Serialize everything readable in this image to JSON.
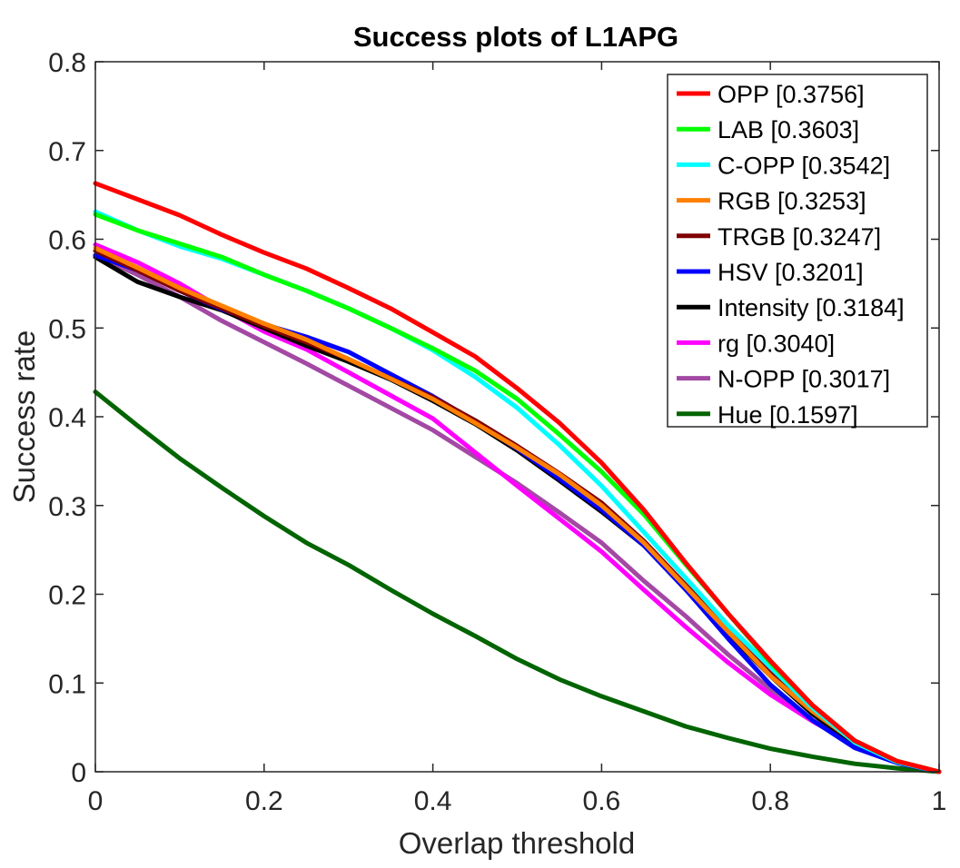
{
  "chart_data": {
    "type": "line",
    "title": "Success plots of L1APG",
    "xlabel": "Overlap threshold",
    "ylabel": "Success rate",
    "xlim": [
      0,
      1
    ],
    "ylim": [
      0,
      0.8
    ],
    "xticks": [
      "0",
      "0.2",
      "0.4",
      "0.6",
      "0.8",
      "1"
    ],
    "yticks": [
      "0",
      "0.1",
      "0.2",
      "0.3",
      "0.4",
      "0.5",
      "0.6",
      "0.7",
      "0.8"
    ],
    "legend_position": "top-right",
    "grid": false,
    "x": [
      0,
      0.05,
      0.1,
      0.15,
      0.2,
      0.25,
      0.3,
      0.35,
      0.4,
      0.45,
      0.5,
      0.55,
      0.6,
      0.65,
      0.7,
      0.75,
      0.8,
      0.85,
      0.9,
      0.95,
      1.0
    ],
    "series": [
      {
        "name": "OPP [0.3756]",
        "color": "#ff0000",
        "values": [
          0.663,
          0.645,
          0.627,
          0.605,
          0.585,
          0.567,
          0.545,
          0.522,
          0.495,
          0.468,
          0.432,
          0.393,
          0.348,
          0.295,
          0.235,
          0.178,
          0.125,
          0.075,
          0.035,
          0.012,
          0.0
        ]
      },
      {
        "name": "LAB [0.3603]",
        "color": "#00ff00",
        "values": [
          0.628,
          0.61,
          0.595,
          0.58,
          0.56,
          0.542,
          0.522,
          0.5,
          0.477,
          0.452,
          0.42,
          0.38,
          0.338,
          0.29,
          0.233,
          0.178,
          0.123,
          0.075,
          0.035,
          0.012,
          0.0
        ]
      },
      {
        "name": "C-OPP [0.3542]",
        "color": "#00ffff",
        "values": [
          0.631,
          0.61,
          0.592,
          0.578,
          0.56,
          0.542,
          0.522,
          0.5,
          0.475,
          0.445,
          0.41,
          0.368,
          0.322,
          0.27,
          0.218,
          0.165,
          0.118,
          0.072,
          0.033,
          0.011,
          0.0
        ]
      },
      {
        "name": "RGB [0.3253]",
        "color": "#ff7f00",
        "values": [
          0.59,
          0.568,
          0.545,
          0.525,
          0.505,
          0.487,
          0.465,
          0.443,
          0.42,
          0.393,
          0.365,
          0.335,
          0.3,
          0.258,
          0.208,
          0.158,
          0.108,
          0.068,
          0.034,
          0.012,
          0.0
        ]
      },
      {
        "name": "TRGB [0.3247]",
        "color": "#800000",
        "values": [
          0.587,
          0.565,
          0.542,
          0.522,
          0.502,
          0.484,
          0.465,
          0.443,
          0.422,
          0.396,
          0.367,
          0.336,
          0.303,
          0.26,
          0.21,
          0.16,
          0.111,
          0.07,
          0.034,
          0.012,
          0.0
        ]
      },
      {
        "name": "HSV [0.3201]",
        "color": "#0000ff",
        "values": [
          0.582,
          0.565,
          0.542,
          0.521,
          0.504,
          0.49,
          0.473,
          0.448,
          0.423,
          0.395,
          0.364,
          0.33,
          0.295,
          0.255,
          0.205,
          0.15,
          0.098,
          0.058,
          0.027,
          0.01,
          0.0
        ]
      },
      {
        "name": "Intensity [0.3184]",
        "color": "#000000",
        "values": [
          0.58,
          0.552,
          0.535,
          0.52,
          0.5,
          0.48,
          0.462,
          0.442,
          0.418,
          0.392,
          0.362,
          0.328,
          0.293,
          0.255,
          0.205,
          0.155,
          0.108,
          0.065,
          0.031,
          0.011,
          0.0
        ]
      },
      {
        "name": "rg [0.3040]",
        "color": "#ff00ff",
        "values": [
          0.594,
          0.574,
          0.55,
          0.522,
          0.496,
          0.476,
          0.45,
          0.424,
          0.398,
          0.36,
          0.322,
          0.285,
          0.248,
          0.205,
          0.163,
          0.123,
          0.087,
          0.057,
          0.03,
          0.011,
          0.0
        ]
      },
      {
        "name": "N-OPP [0.3017]",
        "color": "#a349a4",
        "values": [
          0.582,
          0.56,
          0.535,
          0.508,
          0.484,
          0.46,
          0.435,
          0.41,
          0.385,
          0.355,
          0.325,
          0.292,
          0.258,
          0.215,
          0.175,
          0.132,
          0.093,
          0.058,
          0.03,
          0.011,
          0.0
        ]
      },
      {
        "name": "Hue [0.1597]",
        "color": "#006400",
        "values": [
          0.428,
          0.39,
          0.353,
          0.32,
          0.288,
          0.258,
          0.233,
          0.205,
          0.178,
          0.153,
          0.127,
          0.104,
          0.085,
          0.068,
          0.051,
          0.038,
          0.026,
          0.017,
          0.009,
          0.004,
          0.0
        ]
      }
    ]
  }
}
